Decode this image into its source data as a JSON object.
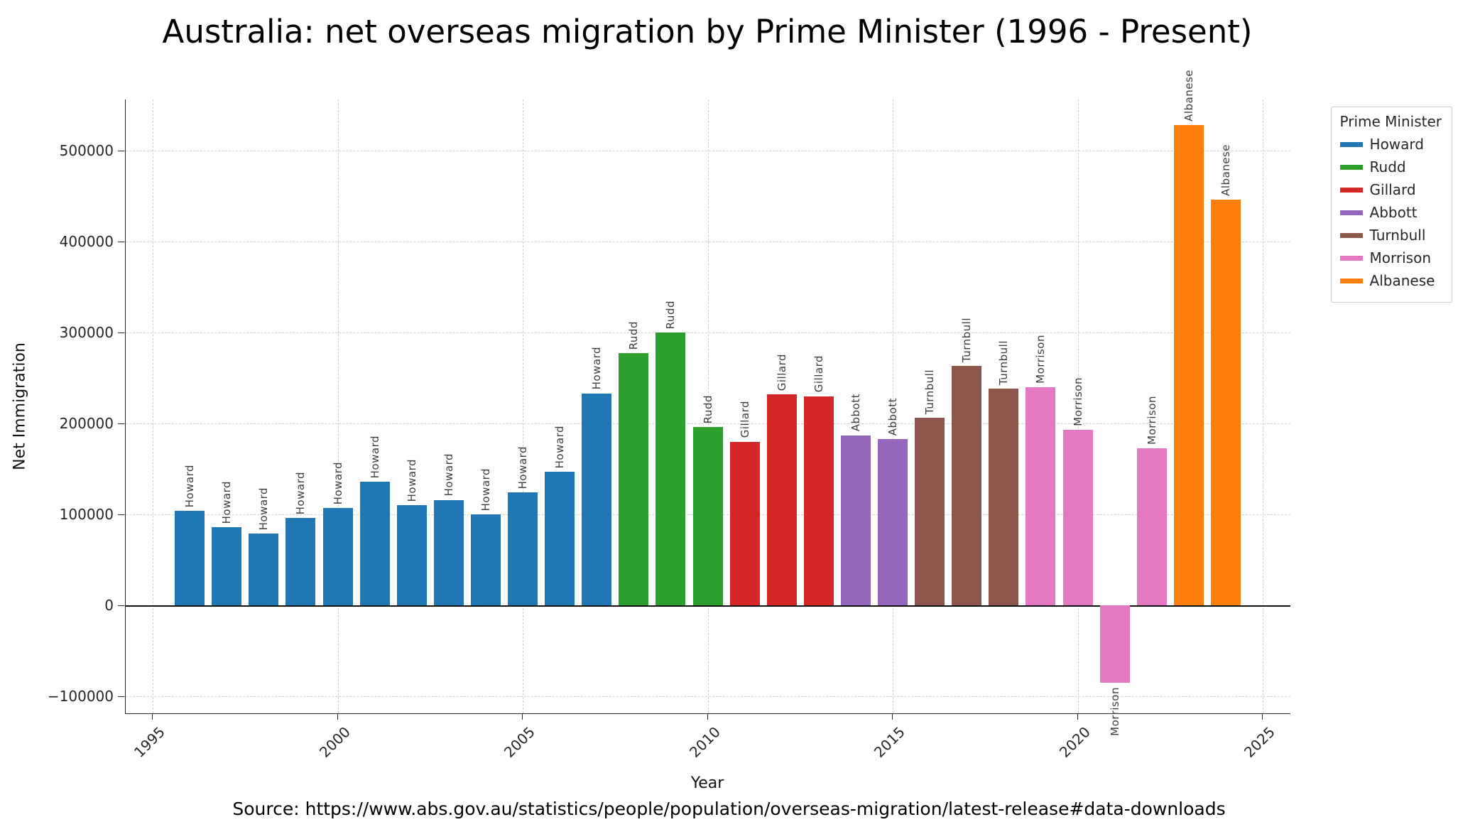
{
  "title": "Australia: net overseas migration by Prime Minister (1996 - Present)",
  "source_caption": "Source: https://www.abs.gov.au/statistics/people/population/overseas-migration/latest-release#data-downloads",
  "axes": {
    "xlabel": "Year",
    "ylabel": "Net Immigration"
  },
  "legend": {
    "title": "Prime Minister",
    "entries": [
      {
        "label": "Howard",
        "color": "#1f77b4"
      },
      {
        "label": "Rudd",
        "color": "#2ca02c"
      },
      {
        "label": "Gillard",
        "color": "#d62728"
      },
      {
        "label": "Abbott",
        "color": "#9467bd"
      },
      {
        "label": "Turnbull",
        "color": "#8c564b"
      },
      {
        "label": "Morrison",
        "color": "#e377c2"
      },
      {
        "label": "Albanese",
        "color": "#ff7f0e"
      }
    ]
  },
  "chart_data": {
    "type": "bar",
    "title": "Australia: net overseas migration by Prime Minister (1996 - Present)",
    "xlabel": "Year",
    "ylabel": "Net Immigration",
    "xlim": [
      1994.3,
      2025.8
    ],
    "ylim": [
      -119000,
      556000
    ],
    "grid": "dashed",
    "legend_position": "upper-right-outside",
    "legend_title": "Prime Minister",
    "colors": {
      "Howard": "#1f77b4",
      "Rudd": "#2ca02c",
      "Gillard": "#d62728",
      "Abbott": "#9467bd",
      "Turnbull": "#8c564b",
      "Morrison": "#e377c2",
      "Albanese": "#ff7f0e"
    },
    "yticks": [
      {
        "value": -100000,
        "label": "−100000"
      },
      {
        "value": 0,
        "label": "0"
      },
      {
        "value": 100000,
        "label": "100000"
      },
      {
        "value": 200000,
        "label": "200000"
      },
      {
        "value": 300000,
        "label": "300000"
      },
      {
        "value": 400000,
        "label": "400000"
      },
      {
        "value": 500000,
        "label": "500000"
      }
    ],
    "xticks": [
      {
        "value": 1995,
        "label": "1995"
      },
      {
        "value": 2000,
        "label": "2000"
      },
      {
        "value": 2005,
        "label": "2005"
      },
      {
        "value": 2010,
        "label": "2010"
      },
      {
        "value": 2015,
        "label": "2015"
      },
      {
        "value": 2020,
        "label": "2020"
      },
      {
        "value": 2025,
        "label": "2025"
      }
    ],
    "bars": [
      {
        "year": 1996,
        "pm": "Howard",
        "value": 104000
      },
      {
        "year": 1997,
        "pm": "Howard",
        "value": 86000
      },
      {
        "year": 1998,
        "pm": "Howard",
        "value": 79000
      },
      {
        "year": 1999,
        "pm": "Howard",
        "value": 96000
      },
      {
        "year": 2000,
        "pm": "Howard",
        "value": 107000
      },
      {
        "year": 2001,
        "pm": "Howard",
        "value": 136000
      },
      {
        "year": 2002,
        "pm": "Howard",
        "value": 110000
      },
      {
        "year": 2003,
        "pm": "Howard",
        "value": 116000
      },
      {
        "year": 2004,
        "pm": "Howard",
        "value": 100000
      },
      {
        "year": 2005,
        "pm": "Howard",
        "value": 124000
      },
      {
        "year": 2006,
        "pm": "Howard",
        "value": 147000
      },
      {
        "year": 2007,
        "pm": "Howard",
        "value": 233000
      },
      {
        "year": 2008,
        "pm": "Rudd",
        "value": 277000
      },
      {
        "year": 2009,
        "pm": "Rudd",
        "value": 300000
      },
      {
        "year": 2010,
        "pm": "Rudd",
        "value": 196000
      },
      {
        "year": 2011,
        "pm": "Gillard",
        "value": 180000
      },
      {
        "year": 2012,
        "pm": "Gillard",
        "value": 232000
      },
      {
        "year": 2013,
        "pm": "Gillard",
        "value": 230000
      },
      {
        "year": 2014,
        "pm": "Abbott",
        "value": 187000
      },
      {
        "year": 2015,
        "pm": "Abbott",
        "value": 183000
      },
      {
        "year": 2016,
        "pm": "Turnbull",
        "value": 206000
      },
      {
        "year": 2017,
        "pm": "Turnbull",
        "value": 263000
      },
      {
        "year": 2018,
        "pm": "Turnbull",
        "value": 238000
      },
      {
        "year": 2019,
        "pm": "Morrison",
        "value": 240000
      },
      {
        "year": 2020,
        "pm": "Morrison",
        "value": 193000
      },
      {
        "year": 2021,
        "pm": "Morrison",
        "value": -85000
      },
      {
        "year": 2022,
        "pm": "Morrison",
        "value": 173000
      },
      {
        "year": 2023,
        "pm": "Albanese",
        "value": 528000
      },
      {
        "year": 2024,
        "pm": "Albanese",
        "value": 446000
      }
    ]
  }
}
